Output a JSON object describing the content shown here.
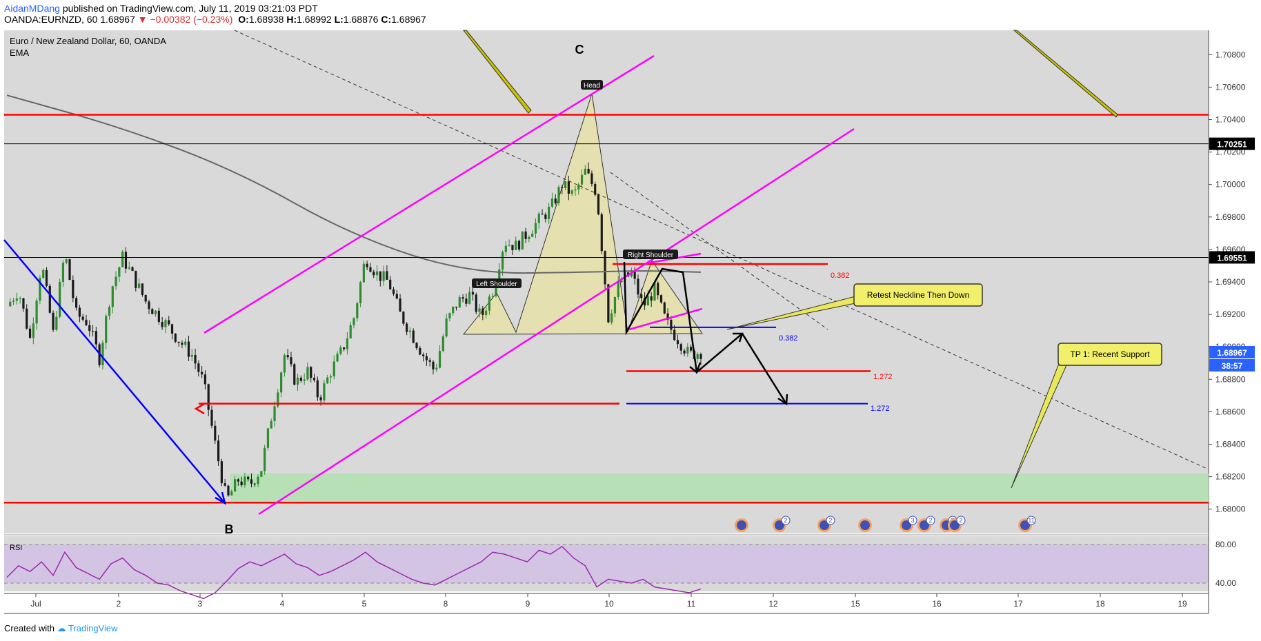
{
  "header": {
    "author": "AidanMDang",
    "published": "published on TradingView.com, July 11, 2019 03:21:03 PDT",
    "symbol": "OANDA:EURNZD, 60",
    "last": "1.68967",
    "change": "−0.00382 (−0.23%)",
    "open_label": "O:",
    "open": "1.68938",
    "high_label": "H:",
    "high": "1.68992",
    "low_label": "L:",
    "low": "1.68876",
    "close_label": "C:",
    "close": "1.68967"
  },
  "legend": {
    "title": "Euro / New Zealand Dollar, 60, OANDA",
    "indicator": "EMA"
  },
  "footer": {
    "created": "Created with",
    "brand": "TradingView"
  },
  "colors": {
    "background": "#d9d9d9",
    "up": "#2e8b2e",
    "down": "#1a1a1a",
    "red_level": "#ff0000",
    "magenta": "#ff00ff",
    "blue": "#0000ff",
    "pattern_fill": "#e8e2a0",
    "support_zone": "#b7e0b7",
    "rsi_band": "#d4c4e4",
    "rsi_line": "#9c27b0"
  },
  "chart_data": {
    "type": "candlestick",
    "title": "Euro / New Zealand Dollar, 60, OANDA",
    "ylim": [
      1.6785,
      1.7095
    ],
    "y_ticks": [
      "1.70800",
      "1.70600",
      "1.70400",
      "1.70200",
      "1.70000",
      "1.69800",
      "1.69600",
      "1.69400",
      "1.69200",
      "1.69000",
      "1.68800",
      "1.68600",
      "1.68400",
      "1.68200",
      "1.68000"
    ],
    "x_ticks": [
      "Jul",
      "2",
      "3",
      "4",
      "5",
      "8",
      "9",
      "10",
      "11",
      "12",
      "15",
      "16",
      "17",
      "18",
      "19"
    ],
    "price_labels": [
      {
        "value": "1.70251",
        "price": 1.70251
      },
      {
        "value": "1.69551",
        "price": 1.69551
      },
      {
        "value": "1.68967",
        "price": 1.68967
      }
    ],
    "countdown": "38:57",
    "price_path": [
      [
        0,
        1.6925
      ],
      [
        1,
        1.6935
      ],
      [
        2,
        1.6905
      ],
      [
        3,
        1.6952
      ],
      [
        4,
        1.6908
      ],
      [
        5,
        1.6958
      ],
      [
        6,
        1.692
      ],
      [
        7,
        1.6915
      ],
      [
        8,
        1.6893
      ],
      [
        9,
        1.6935
      ],
      [
        10,
        1.6955
      ],
      [
        11,
        1.6942
      ],
      [
        12,
        1.6928
      ],
      [
        13,
        1.692
      ],
      [
        14,
        1.6912
      ],
      [
        15,
        1.6903
      ],
      [
        16,
        1.6895
      ],
      [
        17,
        1.6878
      ],
      [
        18,
        1.684
      ],
      [
        19,
        1.6805
      ],
      [
        20,
        1.6818
      ],
      [
        21,
        1.6815
      ],
      [
        22,
        1.6825
      ],
      [
        23,
        1.6862
      ],
      [
        24,
        1.6895
      ],
      [
        25,
        1.6878
      ],
      [
        26,
        1.6885
      ],
      [
        27,
        1.6868
      ],
      [
        28,
        1.6885
      ],
      [
        29,
        1.6898
      ],
      [
        30,
        1.6918
      ],
      [
        31,
        1.6955
      ],
      [
        32,
        1.6945
      ],
      [
        33,
        1.694
      ],
      [
        34,
        1.692
      ],
      [
        35,
        1.6908
      ],
      [
        36,
        1.6895
      ],
      [
        37,
        1.6885
      ],
      [
        38,
        1.6915
      ],
      [
        39,
        1.6928
      ],
      [
        40,
        1.6932
      ],
      [
        41,
        1.6918
      ],
      [
        42,
        1.6935
      ],
      [
        43,
        1.6965
      ],
      [
        44,
        1.6962
      ],
      [
        45,
        1.697
      ],
      [
        46,
        1.6978
      ],
      [
        47,
        1.6985
      ],
      [
        48,
        1.7
      ],
      [
        49,
        1.6993
      ],
      [
        50,
        1.7008
      ],
      [
        51,
        1.6995
      ],
      [
        52,
        1.6918
      ],
      [
        53,
        1.694
      ],
      [
        54,
        1.6945
      ],
      [
        55,
        1.6925
      ],
      [
        56,
        1.6935
      ],
      [
        57,
        1.6915
      ],
      [
        58,
        1.6905
      ],
      [
        59,
        1.6895
      ],
      [
        60,
        1.6897
      ]
    ],
    "ema": [
      [
        0,
        1.7055
      ],
      [
        10,
        1.7035
      ],
      [
        20,
        1.7008
      ],
      [
        30,
        1.6968
      ],
      [
        40,
        1.6945
      ],
      [
        50,
        1.6946
      ],
      [
        55,
        1.6947
      ],
      [
        60,
        1.6946
      ]
    ],
    "rsi": {
      "label": "RSI",
      "ticks": [
        "80.00",
        "40.00"
      ],
      "values": [
        46,
        58,
        52,
        62,
        48,
        72,
        56,
        50,
        44,
        60,
        66,
        54,
        48,
        40,
        38,
        32,
        28,
        24,
        30,
        42,
        55,
        62,
        58,
        64,
        70,
        60,
        56,
        48,
        52,
        58,
        64,
        72,
        62,
        56,
        50,
        44,
        40,
        38,
        44,
        50,
        56,
        62,
        72,
        70,
        66,
        62,
        74,
        70,
        78,
        66,
        58,
        36,
        44,
        42,
        40,
        44,
        36,
        34,
        32,
        30,
        34
      ]
    },
    "pattern_labels": {
      "head": "Head",
      "left_shoulder": "Left Shoulder",
      "right_shoulder": "Right Shoulder",
      "wave_b": "B",
      "wave_c": "C"
    },
    "fib_labels": [
      {
        "text": "0.382",
        "color": "red"
      },
      {
        "text": "0.382",
        "color": "blue"
      },
      {
        "text": "1.272",
        "color": "red"
      },
      {
        "text": "1.272",
        "color": "blue"
      }
    ],
    "callouts": {
      "retest": "Retest Neckline Then Down",
      "tp1": "TP 1: Recent Support"
    },
    "levels": {
      "red_top": 1.7043,
      "black_1": 1.70251,
      "black_2": 1.69551,
      "red_bottom": 1.6804,
      "red_mid": 1.6865,
      "support_zone": [
        1.6804,
        1.6822
      ],
      "red_382": 1.6951,
      "blue_382": 1.6912,
      "red_1272": 1.6885,
      "blue_1272": 1.6865
    },
    "event_badges": [
      "",
      "2",
      "2",
      "",
      "3",
      "2",
      "2",
      "2",
      "11"
    ]
  }
}
